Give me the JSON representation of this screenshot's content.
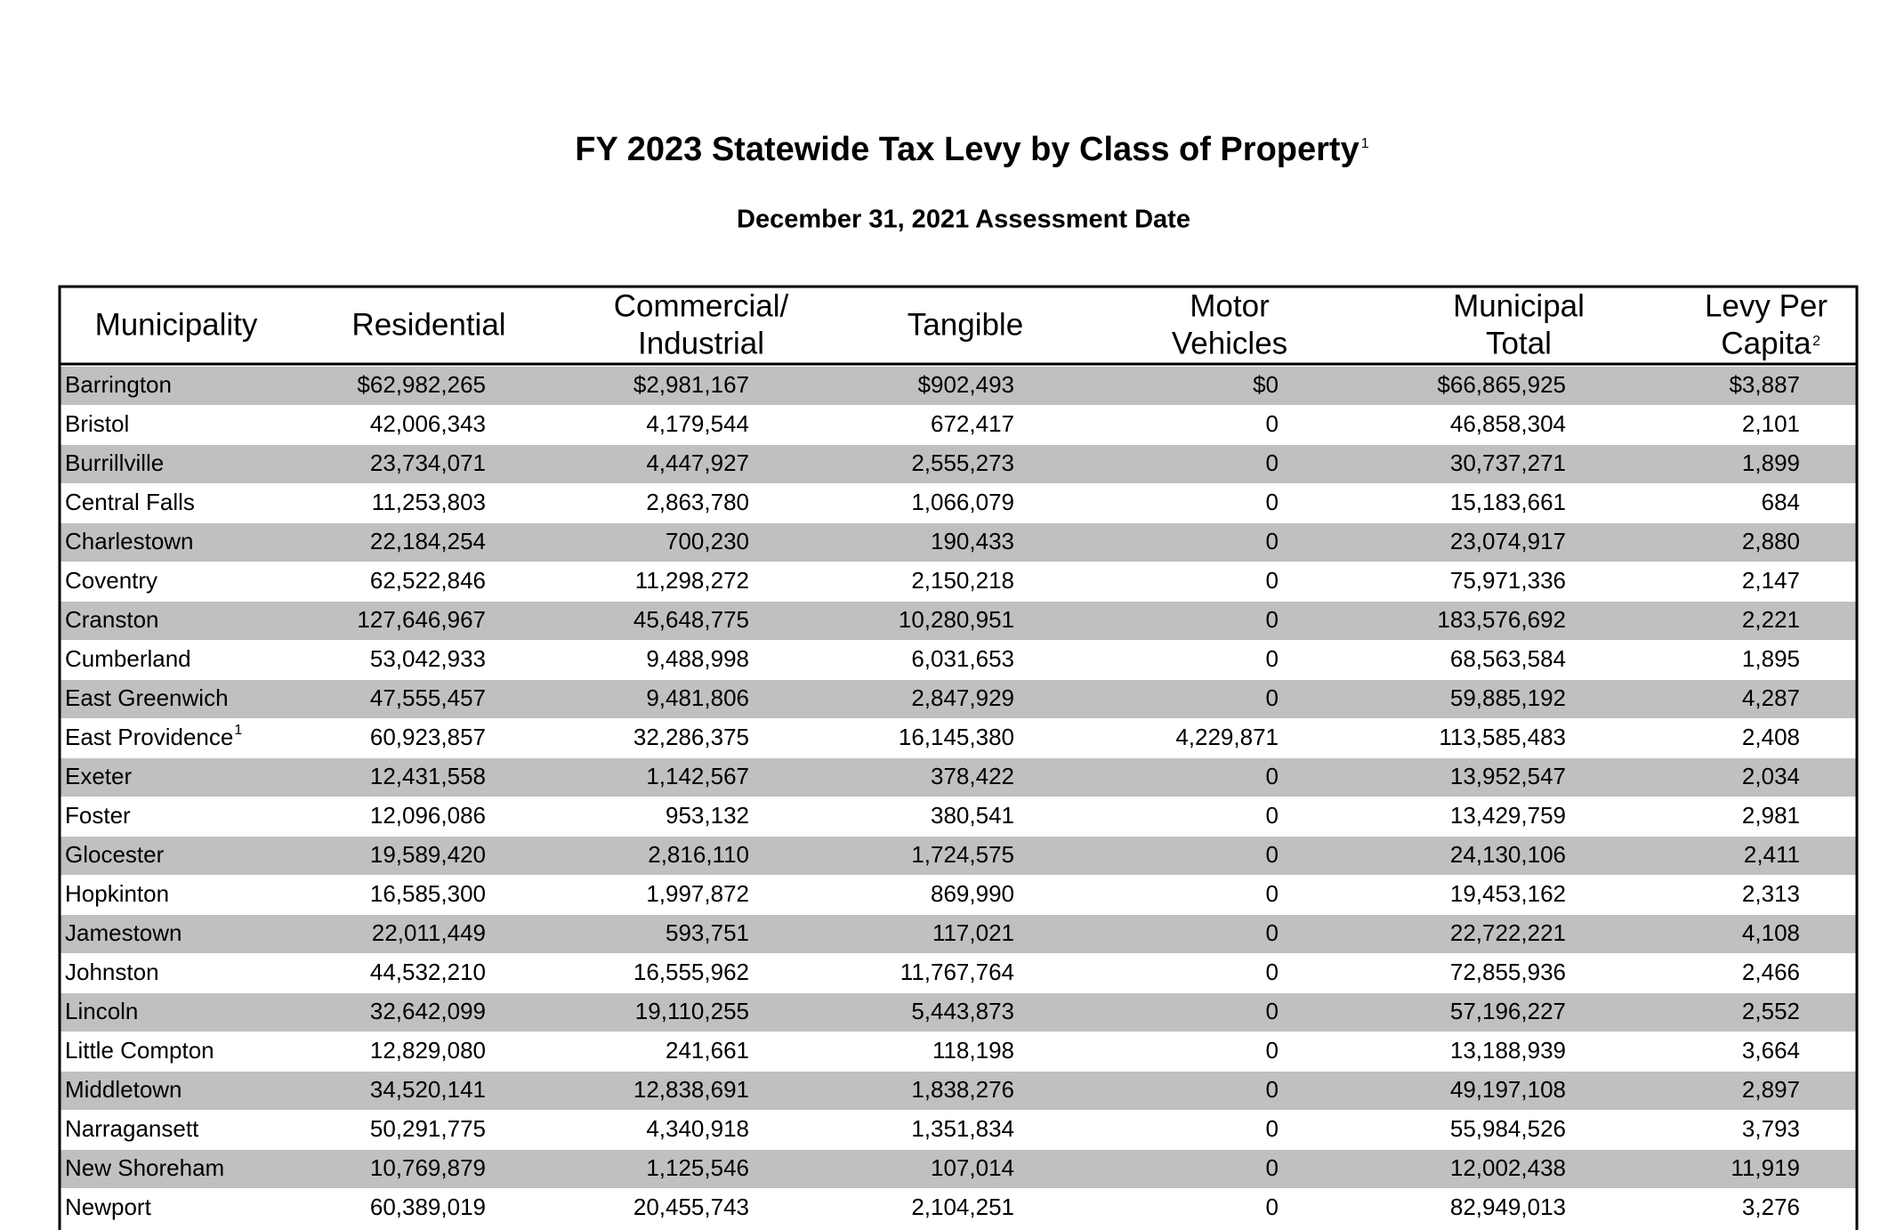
{
  "header": {
    "title": "FY 2023 Statewide Tax Levy by Class of Property",
    "title_note": "1",
    "subtitle": "December 31, 2021 Assessment Date"
  },
  "table": {
    "columns": [
      {
        "lines": [
          "Municipality"
        ]
      },
      {
        "lines": [
          "Residential"
        ]
      },
      {
        "lines": [
          "Commercial/",
          "Industrial"
        ]
      },
      {
        "lines": [
          "Tangible"
        ]
      },
      {
        "lines": [
          "Motor",
          "Vehicles"
        ]
      },
      {
        "lines": [
          "Municipal",
          "Total"
        ]
      },
      {
        "lines": [
          "Levy Per",
          "Capita"
        ],
        "note": "2"
      }
    ],
    "rows": [
      {
        "name": "Barrington",
        "values": [
          "$62,982,265",
          "$2,981,167",
          "$902,493",
          "$0",
          "$66,865,925",
          "$3,887"
        ]
      },
      {
        "name": "Bristol",
        "values": [
          "42,006,343",
          "4,179,544",
          "672,417",
          "0",
          "46,858,304",
          "2,101"
        ]
      },
      {
        "name": "Burrillville",
        "values": [
          "23,734,071",
          "4,447,927",
          "2,555,273",
          "0",
          "30,737,271",
          "1,899"
        ]
      },
      {
        "name": "Central Falls",
        "values": [
          "11,253,803",
          "2,863,780",
          "1,066,079",
          "0",
          "15,183,661",
          "684"
        ]
      },
      {
        "name": "Charlestown",
        "values": [
          "22,184,254",
          "700,230",
          "190,433",
          "0",
          "23,074,917",
          "2,880"
        ]
      },
      {
        "name": "Coventry",
        "values": [
          "62,522,846",
          "11,298,272",
          "2,150,218",
          "0",
          "75,971,336",
          "2,147"
        ]
      },
      {
        "name": "Cranston",
        "values": [
          "127,646,967",
          "45,648,775",
          "10,280,951",
          "0",
          "183,576,692",
          "2,221"
        ]
      },
      {
        "name": "Cumberland",
        "values": [
          "53,042,933",
          "9,488,998",
          "6,031,653",
          "0",
          "68,563,584",
          "1,895"
        ]
      },
      {
        "name": "East Greenwich",
        "values": [
          "47,555,457",
          "9,481,806",
          "2,847,929",
          "0",
          "59,885,192",
          "4,287"
        ]
      },
      {
        "name": "East Providence",
        "note": "1",
        "values": [
          "60,923,857",
          "32,286,375",
          "16,145,380",
          "4,229,871",
          "113,585,483",
          "2,408"
        ]
      },
      {
        "name": "Exeter",
        "values": [
          "12,431,558",
          "1,142,567",
          "378,422",
          "0",
          "13,952,547",
          "2,034"
        ]
      },
      {
        "name": "Foster",
        "values": [
          "12,096,086",
          "953,132",
          "380,541",
          "0",
          "13,429,759",
          "2,981"
        ]
      },
      {
        "name": "Glocester",
        "values": [
          "19,589,420",
          "2,816,110",
          "1,724,575",
          "0",
          "24,130,106",
          "2,411"
        ]
      },
      {
        "name": "Hopkinton",
        "values": [
          "16,585,300",
          "1,997,872",
          "869,990",
          "0",
          "19,453,162",
          "2,313"
        ]
      },
      {
        "name": "Jamestown",
        "values": [
          "22,011,449",
          "593,751",
          "117,021",
          "0",
          "22,722,221",
          "4,108"
        ]
      },
      {
        "name": "Johnston",
        "values": [
          "44,532,210",
          "16,555,962",
          "11,767,764",
          "0",
          "72,855,936",
          "2,466"
        ]
      },
      {
        "name": "Lincoln",
        "values": [
          "32,642,099",
          "19,110,255",
          "5,443,873",
          "0",
          "57,196,227",
          "2,552"
        ]
      },
      {
        "name": "Little Compton",
        "values": [
          "12,829,080",
          "241,661",
          "118,198",
          "0",
          "13,188,939",
          "3,664"
        ]
      },
      {
        "name": "Middletown",
        "values": [
          "34,520,141",
          "12,838,691",
          "1,838,276",
          "0",
          "49,197,108",
          "2,897"
        ]
      },
      {
        "name": "Narragansett",
        "values": [
          "50,291,775",
          "4,340,918",
          "1,351,834",
          "0",
          "55,984,526",
          "3,793"
        ]
      },
      {
        "name": "New Shoreham",
        "values": [
          "10,769,879",
          "1,125,546",
          "107,014",
          "0",
          "12,002,438",
          "11,919"
        ]
      },
      {
        "name": "Newport",
        "values": [
          "60,389,019",
          "20,455,743",
          "2,104,251",
          "0",
          "82,949,013",
          "3,276"
        ]
      }
    ]
  }
}
